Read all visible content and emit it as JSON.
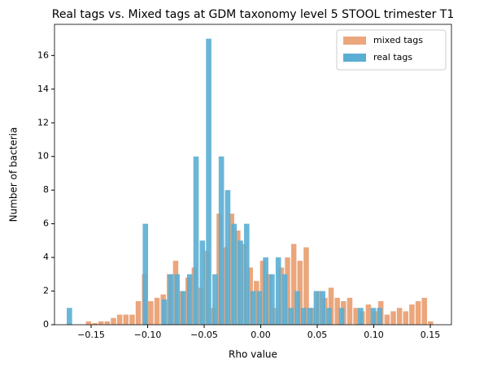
{
  "chart_data": {
    "type": "histogram",
    "title": "Real tags vs. Mixed tags at GDM taxonomy level 5 STOOL trimester T1",
    "x_label": "Rho value",
    "y_label": "Number of bacteria",
    "xlim": [
      -0.1824,
      0.1687
    ],
    "ylim": [
      0,
      17.85
    ],
    "xticks": [
      {
        "value": -0.15,
        "label": "−0.15"
      },
      {
        "value": -0.1,
        "label": "−0.10"
      },
      {
        "value": -0.05,
        "label": "−0.05"
      },
      {
        "value": 0,
        "label": "0.00"
      },
      {
        "value": 0.05,
        "label": "0.05"
      },
      {
        "value": 0.1,
        "label": "0.10"
      },
      {
        "value": 0.15,
        "label": "0.15"
      }
    ],
    "yticks": [
      0,
      2,
      4,
      6,
      8,
      10,
      12,
      14,
      16
    ],
    "legend": "upper right",
    "series": [
      {
        "name": "mixed tags",
        "color": "#eba67c",
        "bins": [
          -0.155,
          -0.1495,
          -0.144,
          -0.1385,
          -0.133,
          -0.1275,
          -0.122,
          -0.1165,
          -0.111,
          -0.1055,
          -0.1,
          -0.0945,
          -0.089,
          -0.0835,
          -0.078,
          -0.0725,
          -0.067,
          -0.0615,
          -0.056,
          -0.0505,
          -0.045,
          -0.0395,
          -0.034,
          -0.0285,
          -0.023,
          -0.0175,
          -0.012,
          -0.0065,
          -0.001,
          0.0045,
          0.01,
          0.0155,
          0.021,
          0.0265,
          0.032,
          0.0375,
          0.043,
          0.0485,
          0.054,
          0.0595,
          0.065,
          0.0705,
          0.076,
          0.0815,
          0.087,
          0.0925,
          0.098,
          0.1035,
          0.109,
          0.1145,
          0.12,
          0.1255,
          0.131,
          0.1365,
          0.142,
          0.1475,
          0.153
        ],
        "values": [
          0.2,
          0.1,
          0.2,
          0.2,
          0.4,
          0.6,
          0.6,
          0.6,
          1.4,
          3.0,
          1.4,
          1.6,
          1.8,
          3.0,
          3.8,
          2.0,
          2.8,
          3.4,
          2.2,
          4.4,
          1.0,
          6.6,
          4.6,
          6.6,
          5.6,
          4.8,
          3.4,
          2.6,
          3.8,
          3.0,
          1.0,
          3.4,
          4.0,
          4.8,
          3.8,
          4.6,
          1.0,
          2.0,
          1.6,
          2.2,
          1.6,
          1.4,
          1.6,
          1.0,
          0.8,
          1.2,
          0.8,
          1.4,
          0.6,
          0.8,
          1.0,
          0.8,
          1.2,
          1.4,
          1.6,
          0.2
        ]
      },
      {
        "name": "real tags",
        "color": "#5aaed3",
        "bins": [
          -0.172,
          -0.1664,
          -0.1608,
          -0.1552,
          -0.1496,
          -0.144,
          -0.1384,
          -0.1328,
          -0.1272,
          -0.1216,
          -0.116,
          -0.1104,
          -0.1048,
          -0.0992,
          -0.0936,
          -0.088,
          -0.0824,
          -0.0768,
          -0.0712,
          -0.0656,
          -0.06,
          -0.0544,
          -0.0488,
          -0.0432,
          -0.0376,
          -0.032,
          -0.0264,
          -0.0208,
          -0.0152,
          -0.0096,
          -0.004,
          0.0016,
          0.0072,
          0.0128,
          0.0184,
          0.024,
          0.0296,
          0.0352,
          0.0408,
          0.0464,
          0.052,
          0.0576,
          0.0632,
          0.0688,
          0.0744,
          0.08,
          0.0856,
          0.0912,
          0.0968,
          0.1024,
          0.108
        ],
        "values": [
          1,
          0,
          0,
          0,
          0,
          0,
          0,
          0,
          0,
          0,
          0,
          0,
          6,
          0,
          0,
          1.5,
          3,
          3,
          2,
          3,
          10,
          5,
          17,
          3,
          10,
          8,
          6,
          5,
          6,
          2,
          2,
          4,
          3,
          4,
          3,
          1,
          2,
          1,
          1,
          2,
          2,
          1,
          0,
          1,
          0,
          0,
          1,
          0,
          1,
          1
        ]
      }
    ]
  }
}
